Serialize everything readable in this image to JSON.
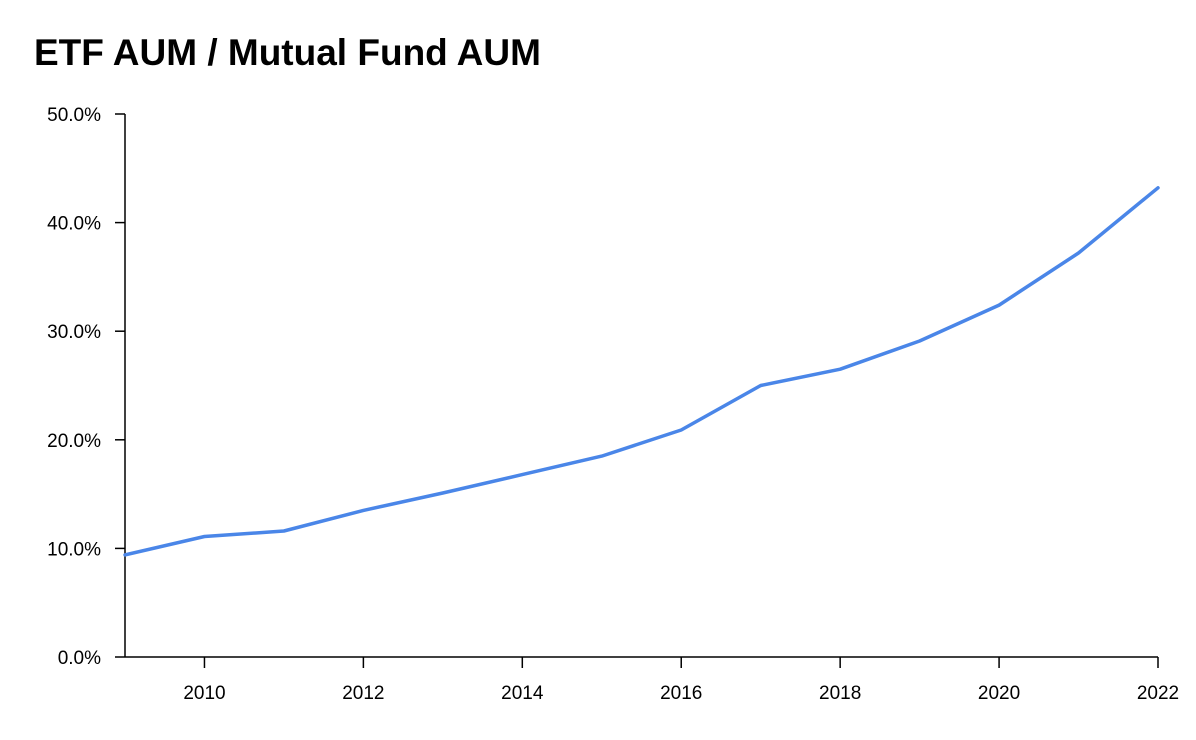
{
  "chart_data": {
    "type": "line",
    "title": "ETF AUM / Mutual Fund AUM",
    "xlabel": "",
    "ylabel": "",
    "x": [
      2009,
      2010,
      2011,
      2012,
      2013,
      2014,
      2015,
      2016,
      2017,
      2018,
      2019,
      2020,
      2021,
      2022
    ],
    "series": [
      {
        "values": [
          9.4,
          11.1,
          11.6,
          13.5,
          15.1,
          16.8,
          18.5,
          20.9,
          25.0,
          26.5,
          29.1,
          32.4,
          37.2,
          43.2
        ],
        "color": "#4a86e8"
      }
    ],
    "xlim": [
      2009,
      2022
    ],
    "ylim": [
      0,
      50
    ],
    "x_ticks": [
      2010,
      2012,
      2014,
      2016,
      2018,
      2020,
      2022
    ],
    "x_tick_labels": [
      "2010",
      "2012",
      "2014",
      "2016",
      "2018",
      "2020",
      "2022"
    ],
    "y_ticks": [
      0,
      10,
      20,
      30,
      40,
      50
    ],
    "y_tick_labels": [
      "0.0%",
      "10.0%",
      "20.0%",
      "30.0%",
      "40.0%",
      "50.0%"
    ],
    "grid": false,
    "legend": "none"
  }
}
